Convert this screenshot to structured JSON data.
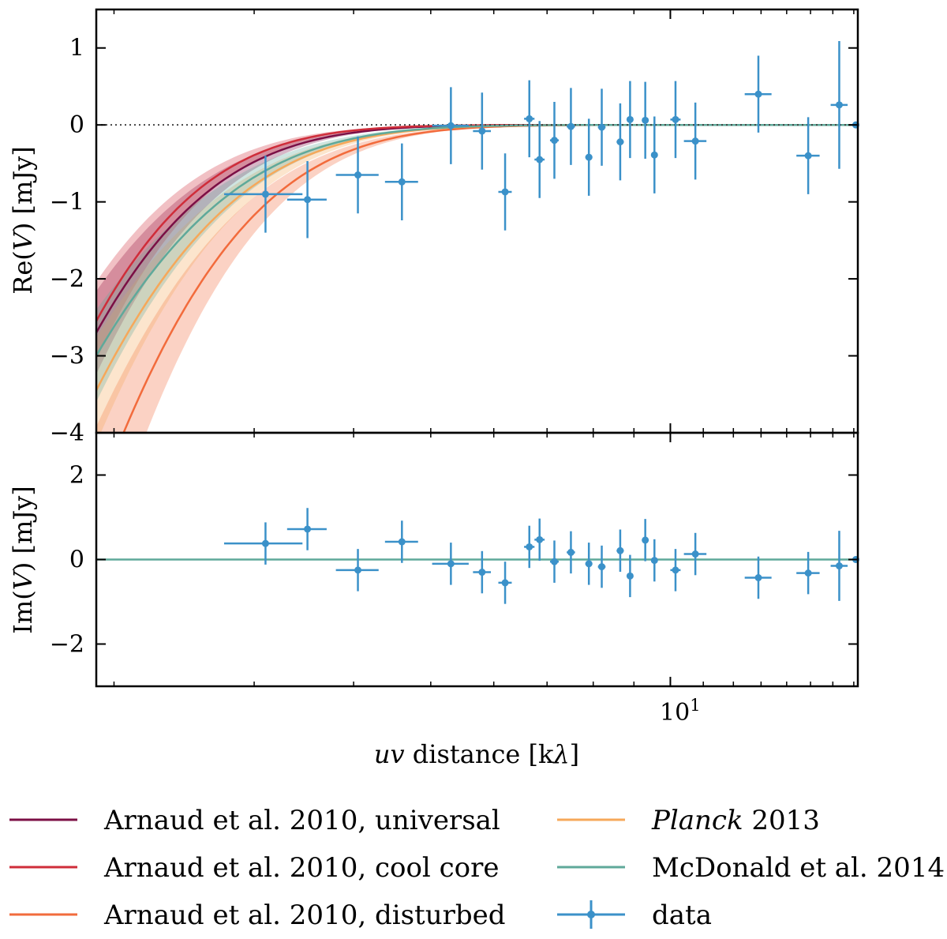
{
  "chart_data": [
    {
      "type": "line",
      "panel": "top",
      "ylabel": "Re(V) [mJy]",
      "ylim": [
        -4,
        1.5
      ],
      "yticks": [
        1,
        0,
        -1,
        -2,
        -3,
        -4
      ],
      "ytick_labels": [
        "1",
        "0",
        "−1",
        "−2",
        "−3",
        "−4"
      ],
      "xscale": "log",
      "xlim": [
        1.9,
        17.2
      ],
      "reference_line": 0,
      "series": [
        {
          "name": "Arnaud et al. 2010, universal",
          "color": "#7b0f45",
          "y0": -2.7,
          "k": 1.57,
          "band": 0.2
        },
        {
          "name": "Arnaud et al. 2010, cool core",
          "color": "#cf2d3a",
          "y0": -2.55,
          "k": 1.7,
          "band": 0.2
        },
        {
          "name": "Arnaud et al. 2010, disturbed",
          "color": "#f26b3c",
          "y0": -4.9,
          "k": 1.3,
          "band": 0.2
        },
        {
          "name": "Planck 2013",
          "color": "#f6a85a",
          "y0": -3.45,
          "k": 1.35,
          "band": 0.2
        },
        {
          "name": "McDonald et al. 2014",
          "color": "#5fa99a",
          "y0": -3.0,
          "k": 1.35,
          "band": 0.2
        }
      ],
      "data": {
        "name": "data",
        "color": "#3b91c9",
        "x": [
          3.1,
          3.5,
          4.05,
          4.6,
          5.3,
          5.8,
          6.2,
          6.65,
          6.85,
          7.15,
          7.5,
          7.9,
          8.2,
          8.65,
          8.9,
          9.3,
          9.55,
          10.15,
          10.75,
          12.9,
          14.9,
          16.3,
          17.1
        ],
        "y": [
          -0.9,
          -0.97,
          -0.65,
          -0.74,
          -0.01,
          -0.08,
          -0.87,
          0.08,
          -0.45,
          -0.2,
          -0.02,
          -0.42,
          -0.03,
          -0.22,
          0.07,
          0.06,
          -0.39,
          0.07,
          -0.21,
          0.4,
          -0.4,
          0.26,
          0.0
        ],
        "xerr": [
          0.35,
          0.2,
          0.25,
          0.22,
          0.28,
          0.15,
          0.12,
          0.1,
          0.1,
          0.09,
          0.09,
          0.08,
          0.09,
          0.09,
          0.08,
          0.08,
          0.08,
          0.15,
          0.35,
          0.5,
          0.5,
          0.4,
          0.0
        ],
        "yerr": [
          0.5,
          0.5,
          0.5,
          0.5,
          0.5,
          0.5,
          0.5,
          0.5,
          0.5,
          0.5,
          0.5,
          0.5,
          0.5,
          0.5,
          0.5,
          0.5,
          0.5,
          0.5,
          0.5,
          0.5,
          0.5,
          0.83,
          0.0
        ]
      }
    },
    {
      "type": "scatter",
      "panel": "bottom",
      "ylabel": "Im(V) [mJy]",
      "xlabel": "uv distance [kλ]",
      "ylim": [
        -3,
        3
      ],
      "yticks": [
        2,
        0,
        -2
      ],
      "ytick_labels": [
        "2",
        "0",
        "−2"
      ],
      "xscale": "log",
      "xlim": [
        1.9,
        17.2
      ],
      "xticks": [
        10
      ],
      "xtick_labels": [
        "10"
      ],
      "model_line": {
        "value": 0,
        "color": "#5fa99a"
      },
      "data": {
        "name": "data",
        "color": "#3b91c9",
        "x": [
          3.1,
          3.5,
          4.05,
          4.6,
          5.3,
          5.8,
          6.2,
          6.65,
          6.85,
          7.15,
          7.5,
          7.9,
          8.2,
          8.65,
          8.9,
          9.3,
          9.55,
          10.15,
          10.75,
          12.9,
          14.9,
          16.3,
          17.1
        ],
        "y": [
          0.38,
          0.72,
          -0.25,
          0.42,
          -0.1,
          -0.3,
          -0.55,
          0.3,
          0.47,
          -0.05,
          0.17,
          -0.1,
          -0.17,
          0.21,
          -0.39,
          0.46,
          -0.02,
          -0.25,
          0.13,
          -0.43,
          -0.32,
          -0.15,
          0.0
        ],
        "xerr": [
          0.35,
          0.2,
          0.25,
          0.22,
          0.28,
          0.15,
          0.12,
          0.1,
          0.1,
          0.09,
          0.09,
          0.08,
          0.09,
          0.09,
          0.08,
          0.08,
          0.08,
          0.15,
          0.35,
          0.5,
          0.5,
          0.4,
          0.0
        ],
        "yerr": [
          0.5,
          0.5,
          0.5,
          0.5,
          0.5,
          0.5,
          0.5,
          0.5,
          0.5,
          0.5,
          0.5,
          0.5,
          0.5,
          0.5,
          0.5,
          0.5,
          0.5,
          0.5,
          0.5,
          0.5,
          0.5,
          0.83,
          0.0
        ]
      }
    }
  ],
  "axis_titles": {
    "x_italic": "uv",
    "x_rest": " distance [k",
    "x_lambda": "λ",
    "x_close": "]",
    "top_y_pre": "Re(",
    "top_y_var": "V",
    "top_y_post": ") [mJy]",
    "bottom_y_pre": "Im(",
    "bottom_y_var": "V",
    "bottom_y_post": ") [mJy]",
    "xtick_base": "10",
    "xtick_exp": "1"
  },
  "legend": {
    "left": [
      {
        "label": "Arnaud et al. 2010, universal",
        "color": "#7b0f45"
      },
      {
        "label": "Arnaud et al. 2010, cool core",
        "color": "#cf2d3a"
      },
      {
        "label": "Arnaud et al. 2010, disturbed",
        "color": "#f26b3c"
      }
    ],
    "right": [
      {
        "label_italic": "Planck",
        "label_rest": " 2013",
        "color": "#f6a85a"
      },
      {
        "label": "McDonald et al. 2014",
        "color": "#5fa99a"
      },
      {
        "label": "data",
        "color": "#3b91c9"
      }
    ]
  }
}
